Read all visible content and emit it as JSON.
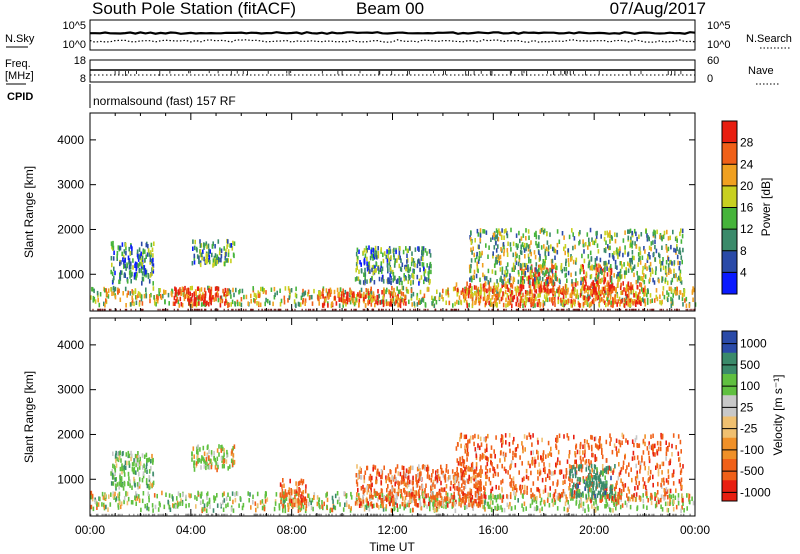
{
  "header": {
    "title": "South Pole Station (fitACF)",
    "beam": "Beam 00",
    "date": "07/Aug/2017"
  },
  "noise_panel": {
    "left_label": "N.Sky",
    "right_label": "N.Search",
    "left_ticks": [
      "10^5",
      "10^0"
    ],
    "right_ticks": [
      "10^5",
      "10^0"
    ]
  },
  "freq_panel": {
    "left_label_1": "Freq.",
    "left_label_2": "[MHz]",
    "left_ticks": [
      "18",
      "8"
    ],
    "right_label": "Nave",
    "right_ticks": [
      "60",
      "0"
    ]
  },
  "cpid_panel": {
    "label": "CPID",
    "text": "normalsound (fast) 157 RF"
  },
  "colors": {
    "power_scale": [
      "#0a1aff",
      "#2a4aa8",
      "#3a8a6a",
      "#46b43a",
      "#c8d020",
      "#f0a020",
      "#f06018",
      "#e81e10"
    ],
    "velocity_scale": [
      "#e81e10",
      "#f06018",
      "#f09028",
      "#f0c070",
      "#c8c8c8",
      "#60c040",
      "#3a8a6a",
      "#2a4aa8"
    ]
  },
  "chart_data": [
    {
      "type": "heatmap",
      "name": "Power",
      "xlabel": "Time UT",
      "ylabel": "Slant Range [km]",
      "xlim": [
        "00:00",
        "24:00"
      ],
      "ylim": [
        180,
        4600
      ],
      "x_ticks": [
        "00:00",
        "04:00",
        "08:00",
        "12:00",
        "16:00",
        "20:00",
        "00:00"
      ],
      "y_ticks": [
        1000,
        2000,
        3000,
        4000
      ],
      "colorbar": {
        "label": "Power [dB]",
        "ticks": [
          4,
          8,
          12,
          16,
          20,
          24,
          28
        ],
        "range": [
          0,
          32
        ]
      },
      "scatter_regions": [
        {
          "t0": 0.0,
          "t1": 24.0,
          "r0": 300,
          "r1": 700,
          "intensity": 0.55
        },
        {
          "t0": 3.3,
          "t1": 5.5,
          "r0": 300,
          "r1": 700,
          "intensity": 0.95
        },
        {
          "t0": 9.0,
          "t1": 12.5,
          "r0": 300,
          "r1": 650,
          "intensity": 0.85
        },
        {
          "t0": 14.5,
          "t1": 22.0,
          "r0": 300,
          "r1": 800,
          "intensity": 0.8
        },
        {
          "t0": 17.0,
          "t1": 18.5,
          "r0": 600,
          "r1": 1200,
          "intensity": 0.9
        },
        {
          "t0": 19.5,
          "t1": 20.7,
          "r0": 600,
          "r1": 1200,
          "intensity": 0.88
        },
        {
          "t0": 15.0,
          "t1": 23.5,
          "r0": 800,
          "r1": 2000,
          "intensity": 0.45
        },
        {
          "t0": 4.0,
          "t1": 5.7,
          "r0": 1200,
          "r1": 1750,
          "intensity": 0.35
        },
        {
          "t0": 0.8,
          "t1": 2.5,
          "r0": 800,
          "r1": 1700,
          "intensity": 0.3
        },
        {
          "t0": 10.5,
          "t1": 13.5,
          "r0": 800,
          "r1": 1600,
          "intensity": 0.35
        }
      ]
    },
    {
      "type": "heatmap",
      "name": "Velocity",
      "xlabel": "Time UT",
      "ylabel": "Slant Range [km]",
      "xlim": [
        "00:00",
        "24:00"
      ],
      "ylim": [
        180,
        4600
      ],
      "x_ticks": [
        "00:00",
        "04:00",
        "08:00",
        "12:00",
        "16:00",
        "20:00",
        "00:00"
      ],
      "y_ticks": [
        1000,
        2000,
        3000,
        4000
      ],
      "colorbar": {
        "label": "Velocity [m s⁻¹]",
        "ticks": [
          "1000",
          "500",
          "100",
          "25",
          "-25",
          "-100",
          "-500",
          "-1000"
        ]
      },
      "scatter_regions": [
        {
          "t0": 0.0,
          "t1": 24.0,
          "r0": 300,
          "r1": 700,
          "velocity": 200
        },
        {
          "t0": 7.5,
          "t1": 8.6,
          "r0": 400,
          "r1": 1000,
          "velocity": -300
        },
        {
          "t0": 10.5,
          "t1": 15.5,
          "r0": 400,
          "r1": 1300,
          "velocity": -250
        },
        {
          "t0": 14.5,
          "t1": 23.5,
          "r0": 500,
          "r1": 2000,
          "velocity": -300
        },
        {
          "t0": 19.0,
          "t1": 20.8,
          "r0": 600,
          "r1": 1300,
          "velocity": 700
        },
        {
          "t0": 4.0,
          "t1": 5.7,
          "r0": 1200,
          "r1": 1750,
          "velocity": 150
        },
        {
          "t0": 0.8,
          "t1": 2.5,
          "r0": 800,
          "r1": 1600,
          "velocity": 300
        }
      ]
    }
  ]
}
